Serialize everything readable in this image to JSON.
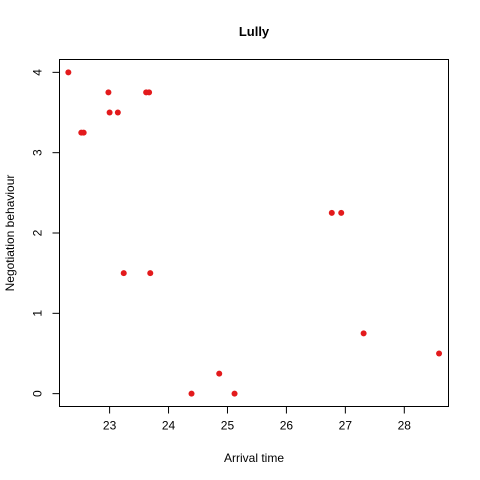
{
  "chart_data": {
    "type": "scatter",
    "title": "Lully",
    "xlabel": "Arrival time",
    "ylabel": "Negotiation behaviour",
    "xlim": [
      22.15,
      28.75
    ],
    "ylim": [
      -0.16,
      4.16
    ],
    "xticks": [
      23,
      24,
      25,
      26,
      27,
      28
    ],
    "yticks": [
      0,
      1,
      2,
      3,
      4
    ],
    "point_color": "#e31a1c",
    "grid": false,
    "legend": "none",
    "points": [
      {
        "x": 22.3,
        "y": 4.0
      },
      {
        "x": 22.52,
        "y": 3.25
      },
      {
        "x": 22.56,
        "y": 3.25
      },
      {
        "x": 22.98,
        "y": 3.75
      },
      {
        "x": 23.0,
        "y": 3.5
      },
      {
        "x": 23.14,
        "y": 3.5
      },
      {
        "x": 23.62,
        "y": 3.75
      },
      {
        "x": 23.67,
        "y": 3.75
      },
      {
        "x": 23.24,
        "y": 1.5
      },
      {
        "x": 23.69,
        "y": 1.5
      },
      {
        "x": 24.39,
        "y": 0.0
      },
      {
        "x": 24.86,
        "y": 0.25
      },
      {
        "x": 25.12,
        "y": 0.0
      },
      {
        "x": 26.77,
        "y": 2.25
      },
      {
        "x": 26.93,
        "y": 2.25
      },
      {
        "x": 27.31,
        "y": 0.75
      },
      {
        "x": 28.59,
        "y": 0.5
      }
    ]
  }
}
